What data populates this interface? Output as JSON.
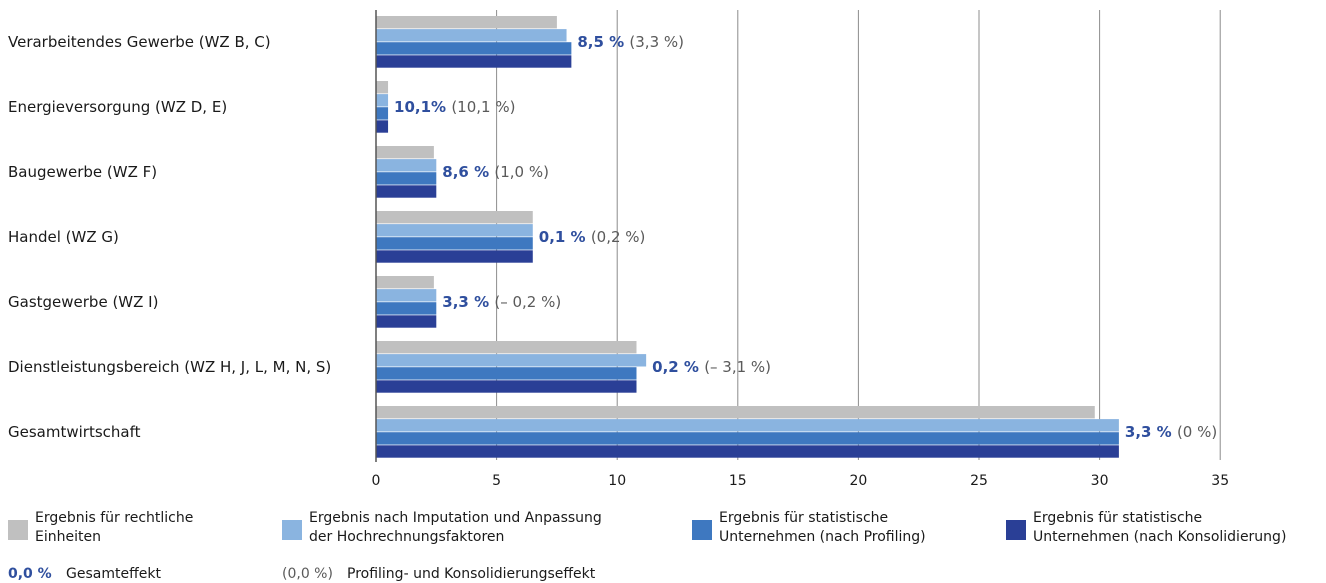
{
  "chart_data": {
    "type": "bar",
    "orientation": "horizontal",
    "categories": [
      "Verarbeitendes Gewerbe (WZ B, C)",
      "Energieversorgung (WZ D, E)",
      "Baugewerbe (WZ F)",
      "Handel (WZ G)",
      "Gastgewerbe (WZ I)",
      "Dienstleistungsbereich (WZ H, J, L, M, N, S)",
      "Gesamtwirtschaft"
    ],
    "series": [
      {
        "name": "Ergebnis für rechtliche Einheiten",
        "color": "#c0c0c0",
        "values": [
          7.5,
          0.5,
          2.4,
          6.5,
          2.4,
          10.8,
          29.8
        ]
      },
      {
        "name": "Ergebnis nach Imputation und Anpassung der Hochrechnungsfaktoren",
        "color": "#8ab4e0",
        "values": [
          7.9,
          0.5,
          2.5,
          6.5,
          2.5,
          11.2,
          30.8
        ]
      },
      {
        "name": "Ergebnis für statistische Unternehmen (nach Profiling)",
        "color": "#3e78c0",
        "values": [
          8.1,
          0.5,
          2.5,
          6.5,
          2.5,
          10.8,
          30.8
        ]
      },
      {
        "name": "Ergebnis für statistische Unternehmen (nach Konsolidierung)",
        "color": "#2a3f96",
        "values": [
          8.1,
          0.5,
          2.5,
          6.5,
          2.5,
          10.8,
          30.8
        ]
      }
    ],
    "annotations": {
      "totals": [
        "8,5 %",
        "10,1%",
        "8,6 %",
        "0,1 %",
        "3,3 %",
        "0,2 %",
        "3,3 %"
      ],
      "effects": [
        "(3,3 %)",
        "(10,1 %)",
        "(1,0 %)",
        "(0,2 %)",
        "(– 0,2 %)",
        "(– 3,1 %)",
        "(0 %)"
      ]
    },
    "x_ticks": [
      "0",
      "5",
      "10",
      "15",
      "20",
      "25",
      "30",
      "35"
    ],
    "xlim": [
      0,
      35
    ],
    "grid": true,
    "legend_position": "bottom",
    "legend_lines": [
      [
        "Ergebnis für rechtliche",
        "Einheiten"
      ],
      [
        "Ergebnis nach Imputation und Anpassung",
        "der Hochrechnungsfaktoren"
      ],
      [
        "Ergebnis für statistische",
        "Unternehmen (nach Profiling)"
      ],
      [
        "Ergebnis für statistische",
        "Unternehmen (nach Konsolidierung)"
      ]
    ],
    "key": {
      "total_sample": "0,0 %",
      "total_label": "Gesamteffekt",
      "effect_sample": "(0,0 %)",
      "effect_label": "Profiling- und Konsolidierungseffekt"
    }
  }
}
